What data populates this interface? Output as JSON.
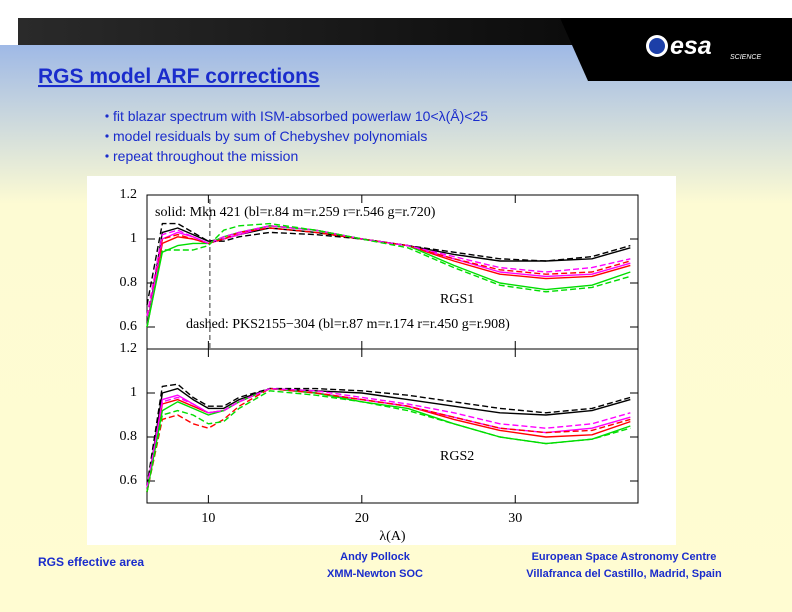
{
  "header": {
    "title": "RGS model ARF corrections",
    "logo": "esa",
    "logo_sub": "SCIENCE"
  },
  "bullets": [
    "fit blazar spectrum with ISM-absorbed powerlaw 10<λ(Å)<25",
    "model residuals by sum of Chebyshev polynomials",
    "repeat throughout the mission"
  ],
  "chart_data": [
    {
      "type": "line",
      "x": [
        6,
        7,
        8,
        9,
        10,
        11,
        12,
        14,
        17,
        20,
        23,
        26,
        29,
        32,
        35,
        37.5
      ],
      "xlim": [
        6,
        38
      ],
      "ylim": [
        0.5,
        1.2
      ],
      "yticks": [
        0.6,
        0.8,
        1,
        1.2
      ],
      "vline": 10.1,
      "annotations": [
        "solid: Mkn 421 (bl=r.84 m=r.259 r=r.546 g=r.720)",
        "RGS1",
        "dashed: PKS2155−304 (bl=r.87 m=r.174 r=r.450 g=r.908)"
      ],
      "series": [
        {
          "color": "#000000",
          "dash": false,
          "values": [
            0.6,
            1.03,
            1.05,
            1.02,
            0.99,
            1.0,
            1.02,
            1.05,
            1.03,
            1.0,
            0.97,
            0.93,
            0.9,
            0.9,
            0.91,
            0.96
          ]
        },
        {
          "color": "#ff0000",
          "dash": false,
          "values": [
            0.6,
            0.98,
            1.01,
            1.0,
            0.98,
            1.0,
            1.02,
            1.06,
            1.04,
            1.0,
            0.97,
            0.9,
            0.84,
            0.82,
            0.83,
            0.88
          ]
        },
        {
          "color": "#ff00ff",
          "dash": false,
          "values": [
            0.6,
            1.0,
            1.03,
            1.01,
            0.98,
            1.0,
            1.02,
            1.06,
            1.04,
            1.0,
            0.97,
            0.91,
            0.85,
            0.83,
            0.84,
            0.89
          ]
        },
        {
          "color": "#00dd00",
          "dash": false,
          "values": [
            0.6,
            0.94,
            0.97,
            0.98,
            0.98,
            1.01,
            1.03,
            1.06,
            1.04,
            1.0,
            0.97,
            0.88,
            0.8,
            0.77,
            0.79,
            0.85
          ]
        },
        {
          "color": "#000000",
          "dash": true,
          "values": [
            0.7,
            1.07,
            1.07,
            1.03,
            0.99,
            0.99,
            1.01,
            1.03,
            1.02,
            1.0,
            0.97,
            0.94,
            0.91,
            0.9,
            0.92,
            0.97
          ]
        },
        {
          "color": "#ff0000",
          "dash": true,
          "values": [
            0.65,
            1.0,
            1.02,
            1.0,
            0.98,
            1.0,
            1.03,
            1.05,
            1.03,
            1.0,
            0.97,
            0.91,
            0.86,
            0.84,
            0.85,
            0.9
          ]
        },
        {
          "color": "#ff00ff",
          "dash": true,
          "values": [
            0.65,
            1.02,
            1.04,
            1.01,
            0.98,
            1.01,
            1.03,
            1.06,
            1.04,
            1.0,
            0.97,
            0.92,
            0.87,
            0.85,
            0.87,
            0.91
          ]
        },
        {
          "color": "#00dd00",
          "dash": true,
          "values": [
            0.6,
            0.95,
            0.95,
            0.95,
            0.97,
            1.04,
            1.06,
            1.07,
            1.04,
            1.0,
            0.96,
            0.87,
            0.79,
            0.76,
            0.78,
            0.83
          ]
        }
      ]
    },
    {
      "type": "line",
      "x": [
        6,
        7,
        8,
        9,
        10,
        11,
        12,
        14,
        17,
        20,
        23,
        26,
        29,
        32,
        35,
        37.5
      ],
      "xlim": [
        6,
        38
      ],
      "ylim": [
        0.5,
        1.2
      ],
      "yticks": [
        0.6,
        0.8,
        1,
        1.2
      ],
      "xticks": [
        10,
        20,
        30
      ],
      "xlabel": "λ(A)",
      "annotations": [
        "RGS2"
      ],
      "series": [
        {
          "color": "#000000",
          "dash": false,
          "values": [
            0.55,
            1.0,
            1.02,
            0.97,
            0.93,
            0.93,
            0.97,
            1.02,
            1.01,
            1.0,
            0.97,
            0.94,
            0.91,
            0.9,
            0.92,
            0.97
          ]
        },
        {
          "color": "#ff0000",
          "dash": false,
          "values": [
            0.55,
            0.95,
            0.97,
            0.94,
            0.91,
            0.92,
            0.96,
            1.02,
            1.0,
            0.97,
            0.94,
            0.88,
            0.83,
            0.8,
            0.81,
            0.87
          ]
        },
        {
          "color": "#ff00ff",
          "dash": false,
          "values": [
            0.55,
            0.97,
            0.99,
            0.95,
            0.91,
            0.92,
            0.96,
            1.02,
            1.0,
            0.97,
            0.94,
            0.89,
            0.84,
            0.82,
            0.84,
            0.89
          ]
        },
        {
          "color": "#00dd00",
          "dash": false,
          "values": [
            0.55,
            0.92,
            0.96,
            0.93,
            0.9,
            0.92,
            0.96,
            1.02,
            1.0,
            0.96,
            0.93,
            0.86,
            0.8,
            0.77,
            0.79,
            0.85
          ]
        },
        {
          "color": "#000000",
          "dash": true,
          "values": [
            0.58,
            1.03,
            1.04,
            0.98,
            0.94,
            0.94,
            0.98,
            1.02,
            1.02,
            1.01,
            0.99,
            0.96,
            0.93,
            0.91,
            0.93,
            0.98
          ]
        },
        {
          "color": "#ff0000",
          "dash": true,
          "values": [
            0.55,
            0.88,
            0.9,
            0.86,
            0.84,
            0.88,
            0.94,
            1.02,
            1.0,
            0.97,
            0.94,
            0.89,
            0.84,
            0.82,
            0.83,
            0.88
          ]
        },
        {
          "color": "#ff00ff",
          "dash": true,
          "values": [
            0.57,
            0.96,
            0.98,
            0.95,
            0.91,
            0.92,
            0.96,
            1.02,
            1.01,
            0.98,
            0.95,
            0.91,
            0.86,
            0.84,
            0.86,
            0.91
          ]
        },
        {
          "color": "#00dd00",
          "dash": true,
          "values": [
            0.55,
            0.9,
            0.92,
            0.9,
            0.86,
            0.87,
            0.93,
            1.01,
            0.99,
            0.96,
            0.92,
            0.86,
            0.8,
            0.77,
            0.79,
            0.84
          ]
        }
      ]
    }
  ],
  "footer": {
    "left": "RGS effective area",
    "center": [
      "Andy Pollock",
      "XMM-Newton SOC"
    ],
    "right": [
      "European Space Astronomy Centre",
      "Villafranca del Castillo, Madrid, Spain"
    ]
  }
}
